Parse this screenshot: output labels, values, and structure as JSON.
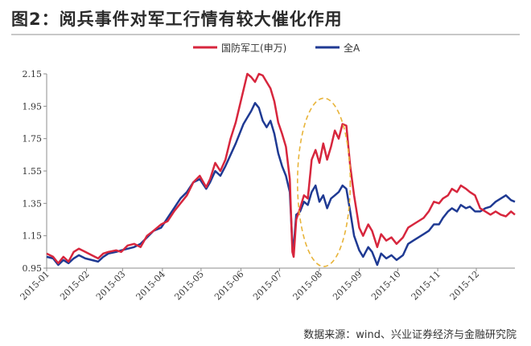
{
  "figure": {
    "title": "图2：阅兵事件对军工行情有较大催化作用",
    "source": "数据来源：wind、兴业证券经济与金融研究院"
  },
  "colors": {
    "series1": "#d7263d",
    "series2": "#1f3a93",
    "highlight": "#e8b43a",
    "axis": "#8c8c8c"
  },
  "chart_data": {
    "type": "line",
    "title": "",
    "xlabel": "",
    "ylabel": "",
    "ylim": [
      0.95,
      2.15
    ],
    "xlim": [
      "2015-01-01",
      "2015-12-31"
    ],
    "yticks": [
      "0.95",
      "1.15",
      "1.35",
      "1.55",
      "1.75",
      "1.95",
      "2.15"
    ],
    "xticks": [
      "2015-01",
      "2015-02",
      "2015-03",
      "2015-04",
      "2015-05",
      "2015-06",
      "2015-07",
      "2015-08",
      "2015-09",
      "2015-10",
      "2015-11",
      "2015-12"
    ],
    "legend": "top-right",
    "grid": false,
    "annotations": [
      {
        "type": "ellipse",
        "style": "dashed",
        "from": "2015-07-15",
        "to": "2015-08-25",
        "y_range": [
          0.96,
          2.0
        ]
      }
    ],
    "series": [
      {
        "name": "国防军工(申万)",
        "points": [
          [
            "2015-01-01",
            1.04
          ],
          [
            "2015-01-06",
            1.02
          ],
          [
            "2015-01-10",
            0.98
          ],
          [
            "2015-01-14",
            1.02
          ],
          [
            "2015-01-18",
            0.99
          ],
          [
            "2015-01-22",
            1.05
          ],
          [
            "2015-01-26",
            1.07
          ],
          [
            "2015-01-31",
            1.05
          ],
          [
            "2015-02-05",
            1.03
          ],
          [
            "2015-02-10",
            1.01
          ],
          [
            "2015-02-14",
            1.04
          ],
          [
            "2015-02-18",
            1.05
          ],
          [
            "2015-02-24",
            1.06
          ],
          [
            "2015-02-28",
            1.05
          ],
          [
            "2015-03-05",
            1.09
          ],
          [
            "2015-03-10",
            1.1
          ],
          [
            "2015-03-15",
            1.08
          ],
          [
            "2015-03-20",
            1.15
          ],
          [
            "2015-03-25",
            1.18
          ],
          [
            "2015-03-31",
            1.22
          ],
          [
            "2015-04-05",
            1.24
          ],
          [
            "2015-04-10",
            1.3
          ],
          [
            "2015-04-15",
            1.35
          ],
          [
            "2015-04-20",
            1.4
          ],
          [
            "2015-04-25",
            1.48
          ],
          [
            "2015-04-30",
            1.52
          ],
          [
            "2015-05-05",
            1.45
          ],
          [
            "2015-05-08",
            1.5
          ],
          [
            "2015-05-12",
            1.6
          ],
          [
            "2015-05-16",
            1.55
          ],
          [
            "2015-05-20",
            1.62
          ],
          [
            "2015-05-24",
            1.75
          ],
          [
            "2015-05-28",
            1.85
          ],
          [
            "2015-05-31",
            1.95
          ],
          [
            "2015-06-03",
            2.05
          ],
          [
            "2015-06-06",
            2.15
          ],
          [
            "2015-06-09",
            2.13
          ],
          [
            "2015-06-12",
            2.1
          ],
          [
            "2015-06-15",
            2.15
          ],
          [
            "2015-06-18",
            2.14
          ],
          [
            "2015-06-21",
            2.1
          ],
          [
            "2015-06-24",
            2.06
          ],
          [
            "2015-06-27",
            1.98
          ],
          [
            "2015-06-30",
            1.85
          ],
          [
            "2015-07-03",
            1.78
          ],
          [
            "2015-07-06",
            1.7
          ],
          [
            "2015-07-09",
            1.5
          ],
          [
            "2015-07-11",
            1.05
          ],
          [
            "2015-07-12",
            1.02
          ],
          [
            "2015-07-14",
            1.25
          ],
          [
            "2015-07-17",
            1.32
          ],
          [
            "2015-07-20",
            1.4
          ],
          [
            "2015-07-23",
            1.38
          ],
          [
            "2015-07-26",
            1.62
          ],
          [
            "2015-07-29",
            1.68
          ],
          [
            "2015-08-01",
            1.6
          ],
          [
            "2015-08-04",
            1.72
          ],
          [
            "2015-08-07",
            1.62
          ],
          [
            "2015-08-10",
            1.7
          ],
          [
            "2015-08-13",
            1.8
          ],
          [
            "2015-08-16",
            1.75
          ],
          [
            "2015-08-19",
            1.84
          ],
          [
            "2015-08-22",
            1.83
          ],
          [
            "2015-08-25",
            1.58
          ],
          [
            "2015-08-28",
            1.4
          ],
          [
            "2015-09-01",
            1.2
          ],
          [
            "2015-09-04",
            1.15
          ],
          [
            "2015-09-08",
            1.22
          ],
          [
            "2015-09-11",
            1.18
          ],
          [
            "2015-09-15",
            1.08
          ],
          [
            "2015-09-18",
            1.16
          ],
          [
            "2015-09-22",
            1.12
          ],
          [
            "2015-09-26",
            1.14
          ],
          [
            "2015-09-30",
            1.1
          ],
          [
            "2015-10-05",
            1.14
          ],
          [
            "2015-10-09",
            1.2
          ],
          [
            "2015-10-13",
            1.22
          ],
          [
            "2015-10-17",
            1.24
          ],
          [
            "2015-10-21",
            1.26
          ],
          [
            "2015-10-25",
            1.3
          ],
          [
            "2015-10-29",
            1.36
          ],
          [
            "2015-11-02",
            1.35
          ],
          [
            "2015-11-05",
            1.38
          ],
          [
            "2015-11-09",
            1.4
          ],
          [
            "2015-11-12",
            1.44
          ],
          [
            "2015-11-16",
            1.42
          ],
          [
            "2015-11-19",
            1.46
          ],
          [
            "2015-11-23",
            1.44
          ],
          [
            "2015-11-26",
            1.42
          ],
          [
            "2015-11-30",
            1.4
          ],
          [
            "2015-12-04",
            1.32
          ],
          [
            "2015-12-08",
            1.3
          ],
          [
            "2015-12-12",
            1.28
          ],
          [
            "2015-12-16",
            1.3
          ],
          [
            "2015-12-20",
            1.28
          ],
          [
            "2015-12-24",
            1.27
          ],
          [
            "2015-12-28",
            1.3
          ],
          [
            "2015-12-31",
            1.28
          ]
        ]
      },
      {
        "name": "全A",
        "points": [
          [
            "2015-01-01",
            1.02
          ],
          [
            "2015-01-06",
            1.01
          ],
          [
            "2015-01-10",
            0.97
          ],
          [
            "2015-01-14",
            1.0
          ],
          [
            "2015-01-18",
            0.98
          ],
          [
            "2015-01-22",
            1.01
          ],
          [
            "2015-01-26",
            1.03
          ],
          [
            "2015-01-31",
            1.01
          ],
          [
            "2015-02-05",
            1.0
          ],
          [
            "2015-02-10",
            0.99
          ],
          [
            "2015-02-14",
            1.02
          ],
          [
            "2015-02-18",
            1.04
          ],
          [
            "2015-02-24",
            1.05
          ],
          [
            "2015-02-28",
            1.06
          ],
          [
            "2015-03-05",
            1.07
          ],
          [
            "2015-03-10",
            1.08
          ],
          [
            "2015-03-15",
            1.1
          ],
          [
            "2015-03-20",
            1.14
          ],
          [
            "2015-03-25",
            1.18
          ],
          [
            "2015-03-31",
            1.2
          ],
          [
            "2015-04-05",
            1.26
          ],
          [
            "2015-04-10",
            1.32
          ],
          [
            "2015-04-15",
            1.38
          ],
          [
            "2015-04-20",
            1.42
          ],
          [
            "2015-04-25",
            1.48
          ],
          [
            "2015-04-30",
            1.5
          ],
          [
            "2015-05-05",
            1.44
          ],
          [
            "2015-05-08",
            1.48
          ],
          [
            "2015-05-12",
            1.55
          ],
          [
            "2015-05-16",
            1.52
          ],
          [
            "2015-05-20",
            1.58
          ],
          [
            "2015-05-24",
            1.65
          ],
          [
            "2015-05-28",
            1.72
          ],
          [
            "2015-05-31",
            1.78
          ],
          [
            "2015-06-03",
            1.84
          ],
          [
            "2015-06-06",
            1.88
          ],
          [
            "2015-06-09",
            1.92
          ],
          [
            "2015-06-12",
            1.97
          ],
          [
            "2015-06-15",
            1.94
          ],
          [
            "2015-06-18",
            1.86
          ],
          [
            "2015-06-21",
            1.82
          ],
          [
            "2015-06-24",
            1.86
          ],
          [
            "2015-06-27",
            1.78
          ],
          [
            "2015-06-30",
            1.66
          ],
          [
            "2015-07-03",
            1.58
          ],
          [
            "2015-07-06",
            1.52
          ],
          [
            "2015-07-09",
            1.42
          ],
          [
            "2015-07-11",
            1.1
          ],
          [
            "2015-07-12",
            1.08
          ],
          [
            "2015-07-14",
            1.28
          ],
          [
            "2015-07-17",
            1.3
          ],
          [
            "2015-07-20",
            1.36
          ],
          [
            "2015-07-23",
            1.34
          ],
          [
            "2015-07-26",
            1.42
          ],
          [
            "2015-07-29",
            1.46
          ],
          [
            "2015-08-01",
            1.36
          ],
          [
            "2015-08-04",
            1.4
          ],
          [
            "2015-08-07",
            1.32
          ],
          [
            "2015-08-10",
            1.38
          ],
          [
            "2015-08-13",
            1.4
          ],
          [
            "2015-08-16",
            1.42
          ],
          [
            "2015-08-19",
            1.46
          ],
          [
            "2015-08-22",
            1.44
          ],
          [
            "2015-08-25",
            1.3
          ],
          [
            "2015-08-28",
            1.15
          ],
          [
            "2015-09-01",
            1.06
          ],
          [
            "2015-09-04",
            1.02
          ],
          [
            "2015-09-08",
            1.08
          ],
          [
            "2015-09-11",
            1.05
          ],
          [
            "2015-09-15",
            0.97
          ],
          [
            "2015-09-18",
            1.04
          ],
          [
            "2015-09-22",
            1.01
          ],
          [
            "2015-09-26",
            1.03
          ],
          [
            "2015-09-30",
            1.0
          ],
          [
            "2015-10-05",
            1.03
          ],
          [
            "2015-10-09",
            1.1
          ],
          [
            "2015-10-13",
            1.12
          ],
          [
            "2015-10-17",
            1.14
          ],
          [
            "2015-10-21",
            1.16
          ],
          [
            "2015-10-25",
            1.18
          ],
          [
            "2015-10-29",
            1.22
          ],
          [
            "2015-11-02",
            1.22
          ],
          [
            "2015-11-05",
            1.26
          ],
          [
            "2015-11-09",
            1.3
          ],
          [
            "2015-11-12",
            1.32
          ],
          [
            "2015-11-16",
            1.3
          ],
          [
            "2015-11-19",
            1.34
          ],
          [
            "2015-11-23",
            1.32
          ],
          [
            "2015-11-26",
            1.33
          ],
          [
            "2015-11-30",
            1.3
          ],
          [
            "2015-12-04",
            1.3
          ],
          [
            "2015-12-08",
            1.32
          ],
          [
            "2015-12-12",
            1.33
          ],
          [
            "2015-12-16",
            1.36
          ],
          [
            "2015-12-20",
            1.38
          ],
          [
            "2015-12-24",
            1.4
          ],
          [
            "2015-12-28",
            1.37
          ],
          [
            "2015-12-31",
            1.36
          ]
        ]
      }
    ]
  }
}
